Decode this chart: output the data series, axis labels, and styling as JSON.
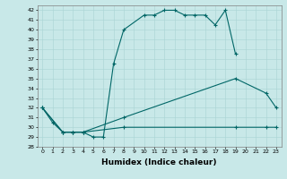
{
  "title": "",
  "xlabel": "Humidex (Indice chaleur)",
  "bg_color": "#c8e8e8",
  "grid_color": "#a8d4d4",
  "line_color": "#006666",
  "xlim": [
    -0.5,
    23.5
  ],
  "ylim": [
    28,
    42.5
  ],
  "xticks": [
    0,
    1,
    2,
    3,
    4,
    5,
    6,
    7,
    8,
    9,
    10,
    11,
    12,
    13,
    14,
    15,
    16,
    17,
    18,
    19,
    20,
    21,
    22,
    23
  ],
  "yticks": [
    28,
    29,
    30,
    31,
    32,
    33,
    34,
    35,
    36,
    37,
    38,
    39,
    40,
    41,
    42
  ],
  "s1_x": [
    0,
    1,
    2,
    3,
    4,
    5,
    6,
    7,
    8,
    10,
    11,
    12,
    13,
    14,
    15,
    16,
    17,
    18,
    19
  ],
  "s1_y": [
    32.0,
    30.5,
    29.5,
    29.5,
    29.5,
    29.0,
    29.0,
    36.5,
    40.0,
    41.5,
    41.5,
    42.0,
    42.0,
    41.5,
    41.5,
    41.5,
    40.5,
    42.0,
    37.5
  ],
  "s2_x": [
    0,
    2,
    3,
    4,
    8,
    19,
    22,
    23
  ],
  "s2_y": [
    32.0,
    29.5,
    29.5,
    29.5,
    31.0,
    35.0,
    33.5,
    32.0
  ],
  "s3_x": [
    0,
    2,
    3,
    4,
    8,
    19,
    22,
    23
  ],
  "s3_y": [
    32.0,
    29.5,
    29.5,
    29.5,
    30.0,
    30.0,
    30.0,
    30.0
  ],
  "xlabel_fontsize": 6.5,
  "tick_fontsize": 4.5
}
